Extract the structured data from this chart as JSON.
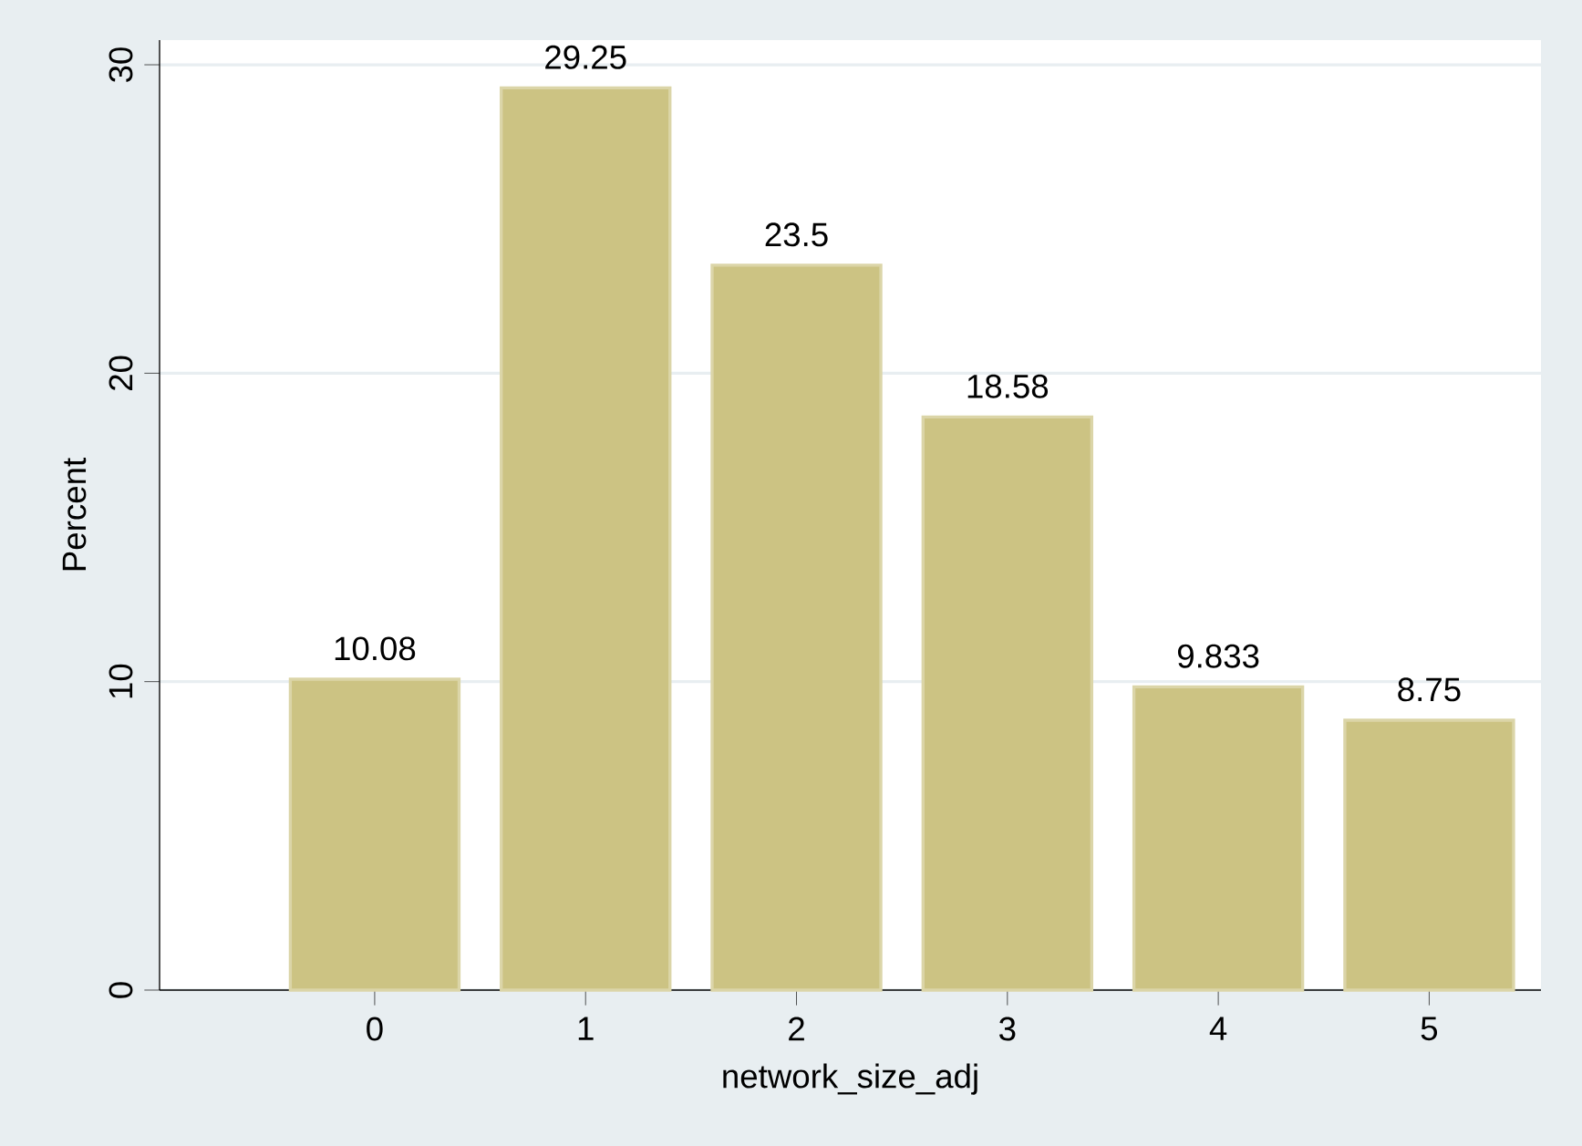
{
  "chart_data": {
    "type": "bar",
    "xlabel": "network_size_adj",
    "ylabel": "Percent",
    "x": [
      0,
      1,
      2,
      3,
      4,
      5
    ],
    "values": [
      10.08,
      29.25,
      23.5,
      18.58,
      9.833,
      8.75
    ],
    "color": "#ccc383",
    "data_labels": true,
    "xlim": [
      -1.02,
      5.53
    ],
    "xticks": [
      0,
      1,
      2,
      3,
      4,
      5
    ],
    "ylim": [
      0,
      30.8
    ],
    "yticks": [
      0,
      10,
      20,
      30
    ],
    "grid": "y"
  }
}
